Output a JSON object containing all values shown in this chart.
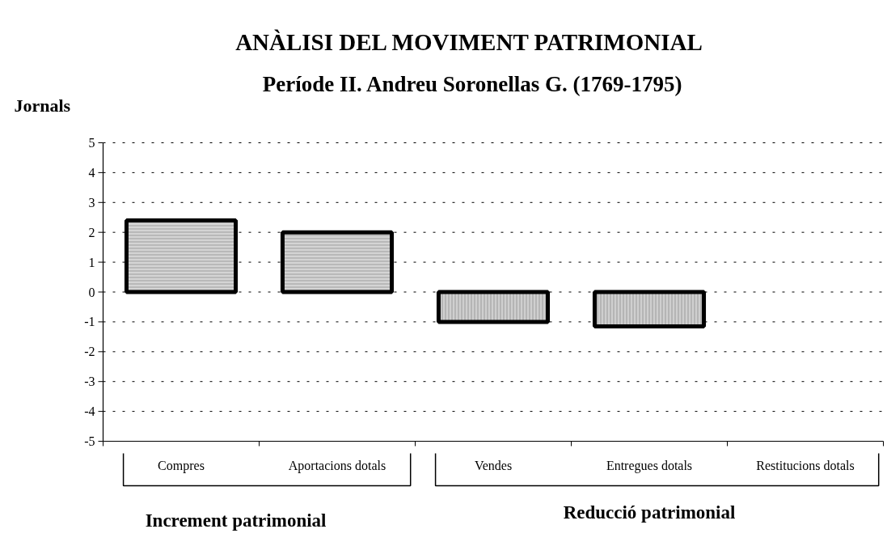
{
  "chart_data": {
    "type": "bar",
    "title": "ANÀLISI DEL MOVIMENT PATRIMONIAL",
    "subtitle": "Període II. Andreu Soronellas G. (1769-1795)",
    "ylabel": "Jornals",
    "categories": [
      "Compres",
      "Aportacions dotals",
      "Vendes",
      "Entregues dotals",
      "Restitucions dotals"
    ],
    "values": [
      2.4,
      2.0,
      -1.0,
      -1.15,
      null
    ],
    "colors": [
      "#d4d4d4",
      "#d4d4d4",
      "#cfcfcf",
      "#cfcfcf",
      "#cfcfcf"
    ],
    "ylim": [
      -5,
      5
    ],
    "yticks": [
      -5,
      -4,
      -3,
      -2,
      -1,
      0,
      1,
      2,
      3,
      4,
      5
    ],
    "grid": "y",
    "annotations": [
      "Increment patrimonial",
      "Reducció patrimonial"
    ]
  }
}
